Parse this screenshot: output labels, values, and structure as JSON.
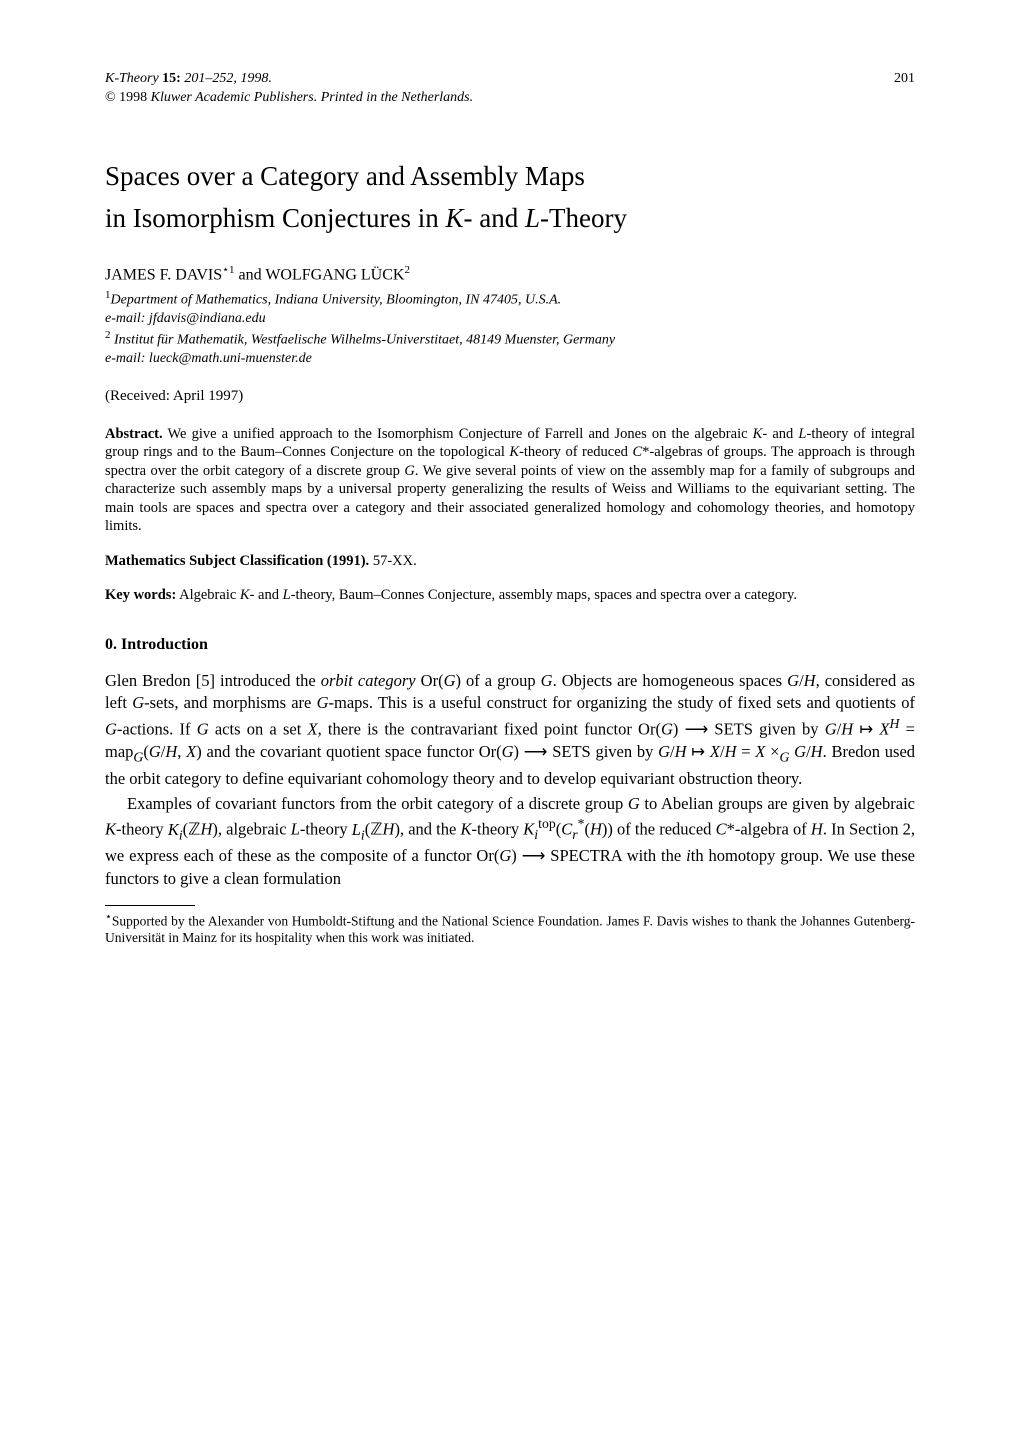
{
  "header": {
    "journal": "K-Theory",
    "volume": "15:",
    "pages": "201–252, 1998.",
    "page_number": "201",
    "copyright_year": "© 1998",
    "copyright_text": "Kluwer Academic Publishers.  Printed in the Netherlands."
  },
  "title_line1": "Spaces over a Category and Assembly Maps",
  "title_line2": "in Isomorphism Conjectures in K- and L-Theory",
  "authors": "JAMES F. DAVIS⋆1 and WOLFGANG LÜCK2",
  "affiliations": {
    "a1_sup": "1",
    "a1_text": "Department of Mathematics, Indiana University, Bloomington, IN 47405, U.S.A.",
    "a1_email": "e-mail: jfdavis@indiana.edu",
    "a2_sup": "2",
    "a2_text": " Institut für Mathematik, Westfaelische Wilhelms-Universtitaet, 48149 Muenster, Germany",
    "a2_email": "e-mail: lueck@math.uni-muenster.de"
  },
  "received": "(Received: April 1997)",
  "abstract_label": "Abstract.",
  "abstract_text": " We give a unified approach to the Isomorphism Conjecture of Farrell and Jones on the algebraic K- and L-theory of integral group rings and to the Baum–Connes Conjecture on the topological K-theory of reduced C*-algebras of groups. The approach is through spectra over the orbit category of a discrete group G. We give several points of view on the assembly map for a family of subgroups and characterize such assembly maps by a universal property generalizing the results of Weiss and Williams to the equivariant setting. The main tools are spaces and spectra over a category and their associated generalized homology and cohomology theories, and homotopy limits.",
  "msc_label": "Mathematics Subject Classification (1991).",
  "msc_text": " 57-XX.",
  "keywords_label": "Key words:",
  "keywords_text": " Algebraic K- and L-theory, Baum–Connes Conjecture, assembly maps, spaces and spectra over a category.",
  "section_heading": "0.  Introduction",
  "para1_html": "Glen Bredon [5] introduced the <span class=\"ital\">orbit category</span> Or(<span class=\"ital\">G</span>) of a group <span class=\"ital\">G</span>. Objects are homogeneous spaces <span class=\"ital\">G</span>/<span class=\"ital\">H</span>, considered as left <span class=\"ital\">G</span>-sets, and morphisms are <span class=\"ital\">G</span>-maps. This is a useful construct for organizing the study of fixed sets and quotients of <span class=\"ital\">G</span>-actions. If <span class=\"ital\">G</span> acts on a set <span class=\"ital\">X</span>, there is the contravariant fixed point functor Or(<span class=\"ital\">G</span>) &#x27F6; SETS given by <span class=\"ital\">G</span>/<span class=\"ital\">H</span> &#x21A6; <span class=\"ital\">X</span><sup><span class=\"ital\">H</span></sup> = map<sub><span class=\"ital\">G</span></sub>(<span class=\"ital\">G</span>/<span class=\"ital\">H</span>, <span class=\"ital\">X</span>) and the covariant quotient space functor Or(<span class=\"ital\">G</span>) &#x27F6; SETS given by <span class=\"ital\">G</span>/<span class=\"ital\">H</span> &#x21A6; <span class=\"ital\">X</span>/<span class=\"ital\">H</span> = <span class=\"ital\">X</span> &times;<sub><span class=\"ital\">G</span></sub> <span class=\"ital\">G</span>/<span class=\"ital\">H</span>. Bredon used the orbit category to define equivariant cohomology theory and to develop equivariant obstruction theory.",
  "para2_html": "Examples of covariant functors from the orbit category of a discrete group <span class=\"ital\">G</span> to Abelian groups are given by algebraic <span class=\"ital\">K</span>-theory <span class=\"ital\">K<sub>i</sub></span>(&#x2124;<span class=\"ital\">H</span>), algebraic <span class=\"ital\">L</span>-theory <span class=\"ital\">L<sub>i</sub></span>(&#x2124;<span class=\"ital\">H</span>), and the <span class=\"ital\">K</span>-theory <span class=\"ital\">K</span><sub><span class=\"ital\">i</span></sub><sup>top</sup>(<span class=\"ital\">C</span><sub><span class=\"ital\">r</span></sub><sup>*</sup>(<span class=\"ital\">H</span>)) of the reduced <span class=\"ital\">C</span>*-algebra of <span class=\"ital\">H</span>. In Section 2, we express each of these as the composite of a functor Or(<span class=\"ital\">G</span>) &#x27F6; SPECTRA with the <span class=\"ital\">i</span>th homotopy group. We use these functors to give a clean formulation",
  "footnote_marker": "⋆",
  "footnote_text": "Supported by the Alexander von Humboldt-Stiftung and the National Science Foundation. James F. Davis wishes to thank the Johannes Gutenberg-Universität in Mainz for its hospitality when this work was initiated."
}
